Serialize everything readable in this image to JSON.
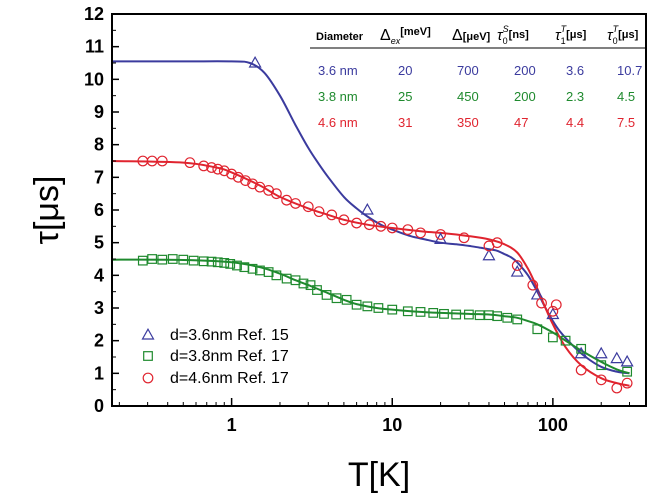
{
  "chart_data": {
    "type": "scatter",
    "xlabel": "T[K]",
    "ylabel": "τ[μs]",
    "xscale": "log",
    "xlim": [
      0.18,
      380
    ],
    "ylim": [
      0,
      12
    ],
    "xticks": [
      1,
      10,
      100
    ],
    "xtick_labels": [
      "1",
      "10",
      "100"
    ],
    "yticks": [
      0,
      1,
      2,
      3,
      4,
      5,
      6,
      7,
      8,
      9,
      10,
      11,
      12
    ],
    "ytick_labels": [
      "0",
      "1",
      "2",
      "3",
      "4",
      "5",
      "6",
      "7",
      "8",
      "9",
      "10",
      "11",
      "12"
    ],
    "grid": false,
    "legend_position": "bottom-left",
    "series": [
      {
        "name": "d=3.6nm Ref. 15",
        "marker": "triangle",
        "color": "#3b3b9e",
        "x": [
          1.4,
          7.0,
          20,
          40,
          60,
          80,
          100,
          150,
          200,
          250,
          290
        ],
        "y": [
          10.5,
          6.0,
          5.1,
          4.6,
          4.1,
          3.4,
          2.8,
          1.6,
          1.6,
          1.45,
          1.35
        ]
      },
      {
        "name": "d=3.8nm Ref. 17",
        "marker": "square",
        "color": "#1f8a2e",
        "x": [
          0.28,
          0.32,
          0.37,
          0.43,
          0.5,
          0.58,
          0.67,
          0.75,
          0.82,
          0.9,
          0.98,
          1.08,
          1.2,
          1.35,
          1.5,
          1.7,
          1.9,
          2.2,
          2.5,
          2.8,
          3.1,
          3.4,
          3.9,
          4.5,
          5.2,
          6.0,
          7.0,
          8.2,
          10,
          12.5,
          15,
          18,
          21,
          25,
          30,
          35,
          40,
          45,
          52,
          60,
          80,
          100,
          120,
          150,
          200,
          290
        ],
        "y": [
          4.45,
          4.5,
          4.48,
          4.5,
          4.48,
          4.45,
          4.43,
          4.42,
          4.4,
          4.38,
          4.35,
          4.3,
          4.25,
          4.2,
          4.15,
          4.1,
          4.0,
          3.9,
          3.85,
          3.75,
          3.7,
          3.55,
          3.4,
          3.3,
          3.25,
          3.1,
          3.05,
          3.0,
          2.95,
          2.9,
          2.88,
          2.85,
          2.82,
          2.8,
          2.8,
          2.78,
          2.78,
          2.75,
          2.7,
          2.65,
          2.35,
          2.1,
          2.0,
          1.75,
          1.25,
          1.05
        ]
      },
      {
        "name": "d=4.6nm Ref. 17",
        "marker": "circle",
        "color": "#e0242f",
        "x": [
          0.28,
          0.32,
          0.37,
          0.55,
          0.67,
          0.75,
          0.82,
          0.9,
          1.0,
          1.1,
          1.22,
          1.35,
          1.5,
          1.7,
          1.9,
          2.2,
          2.5,
          3.0,
          3.5,
          4.2,
          5.0,
          6.0,
          7.2,
          8.5,
          10,
          12.5,
          15,
          20,
          28,
          40,
          45,
          60,
          75,
          85,
          100,
          105,
          150,
          200,
          250,
          290
        ],
        "y": [
          7.5,
          7.5,
          7.5,
          7.45,
          7.35,
          7.3,
          7.25,
          7.2,
          7.1,
          7.0,
          6.9,
          6.8,
          6.7,
          6.6,
          6.5,
          6.3,
          6.2,
          6.1,
          5.95,
          5.85,
          5.7,
          5.6,
          5.55,
          5.5,
          5.45,
          5.4,
          5.3,
          5.25,
          5.15,
          4.9,
          5.0,
          4.3,
          3.7,
          3.15,
          2.9,
          3.1,
          1.1,
          0.8,
          0.55,
          0.7
        ]
      }
    ],
    "fit_curves": [
      {
        "color": "#3b3b9e",
        "x": [
          0.18,
          0.5,
          1.0,
          1.3,
          1.6,
          2.0,
          2.5,
          3.0,
          3.5,
          4.0,
          5.0,
          6.0,
          7.0,
          8.5,
          10,
          13,
          16,
          20,
          25,
          30,
          35,
          40,
          45,
          50,
          55,
          60,
          70,
          80,
          90,
          100,
          110,
          130,
          160,
          200,
          250,
          300
        ],
        "y": [
          10.55,
          10.55,
          10.55,
          10.5,
          10.2,
          9.5,
          8.6,
          7.9,
          7.4,
          7.0,
          6.4,
          6.05,
          5.8,
          5.55,
          5.4,
          5.2,
          5.1,
          5.0,
          4.95,
          4.9,
          4.85,
          4.8,
          4.75,
          4.65,
          4.55,
          4.4,
          4.0,
          3.5,
          3.0,
          2.6,
          2.3,
          1.9,
          1.5,
          1.2,
          1.05,
          1.0
        ]
      },
      {
        "color": "#1f8a2e",
        "x": [
          0.18,
          0.5,
          1.0,
          1.5,
          2.0,
          2.5,
          3.0,
          4.0,
          5.0,
          6.0,
          8.0,
          10,
          15,
          20,
          30,
          40,
          50,
          60,
          70,
          80,
          100,
          120,
          150,
          200,
          250,
          300
        ],
        "y": [
          4.48,
          4.47,
          4.4,
          4.25,
          4.05,
          3.85,
          3.7,
          3.45,
          3.25,
          3.12,
          3.0,
          2.95,
          2.88,
          2.85,
          2.82,
          2.8,
          2.75,
          2.7,
          2.6,
          2.5,
          2.25,
          2.0,
          1.7,
          1.35,
          1.12,
          1.0
        ]
      },
      {
        "color": "#e0242f",
        "x": [
          0.18,
          0.5,
          0.8,
          1.0,
          1.5,
          2.0,
          3.0,
          4.0,
          5.0,
          7.0,
          10,
          15,
          20,
          30,
          40,
          50,
          60,
          70,
          80,
          90,
          100,
          120,
          150,
          200,
          250,
          300
        ],
        "y": [
          7.5,
          7.45,
          7.3,
          7.15,
          6.75,
          6.4,
          6.05,
          5.85,
          5.7,
          5.55,
          5.45,
          5.35,
          5.3,
          5.2,
          5.1,
          4.95,
          4.7,
          4.2,
          3.6,
          3.0,
          2.5,
          1.8,
          1.25,
          0.85,
          0.7,
          0.62
        ]
      }
    ]
  },
  "table": {
    "headers": {
      "diameter": "Diameter",
      "d_ex_sym": "Δ",
      "d_ex_sub": "ex",
      "d_ex_unit": "[meV]",
      "delta_sym": "Δ",
      "delta_unit": "[μeV]",
      "tau0s_sym": "τ",
      "tau0s_sub": "0",
      "tau0s_sup": "S",
      "tau0s_unit": "[ns]",
      "tau1t_sym": "τ",
      "tau1t_sub": "1",
      "tau1t_sup": "T",
      "tau1t_unit": "[μs]",
      "tau0t_sym": "τ",
      "tau0t_sub": "0",
      "tau0t_sup": "T",
      "tau0t_unit": "[μs]"
    },
    "rows": [
      {
        "color": "#3b3b9e",
        "cells": [
          "3.6 nm",
          "20",
          "700",
          "200",
          "3.6",
          "10.7"
        ]
      },
      {
        "color": "#1f8a2e",
        "cells": [
          "3.8 nm",
          "25",
          "450",
          "200",
          "2.3",
          "4.5"
        ]
      },
      {
        "color": "#e0242f",
        "cells": [
          "4.6 nm",
          "31",
          "350",
          "47",
          "4.4",
          "7.5"
        ]
      }
    ]
  }
}
